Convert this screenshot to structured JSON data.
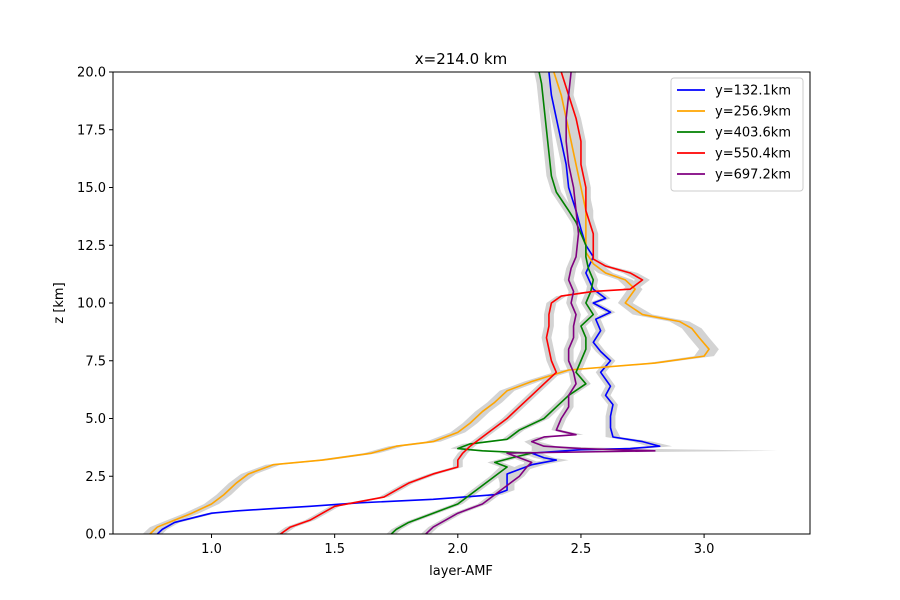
{
  "chart_data": {
    "type": "line",
    "title": "x=214.0 km",
    "xlabel": "layer-AMF",
    "ylabel": "z [km]",
    "xlim": [
      0.6,
      3.43
    ],
    "ylim": [
      0,
      20
    ],
    "xticks": [
      1.0,
      1.5,
      2.0,
      2.5,
      3.0
    ],
    "xtick_labels": [
      "1.0",
      "1.5",
      "2.0",
      "2.5",
      "3.0"
    ],
    "yticks": [
      0,
      2.5,
      5,
      7.5,
      10,
      12.5,
      15,
      17.5,
      20
    ],
    "ytick_labels": [
      "0.0",
      "2.5",
      "5.0",
      "7.5",
      "10.0",
      "12.5",
      "15.0",
      "17.5",
      "20.0"
    ],
    "grid": false,
    "legend_position": "top-right",
    "uncertainty_band_color": "#d3d3d3",
    "series": [
      {
        "name": "y=132.1km",
        "color": "#0000ff",
        "points": [
          [
            0.78,
            0
          ],
          [
            0.8,
            0.2
          ],
          [
            0.85,
            0.5
          ],
          [
            1.0,
            0.9
          ],
          [
            1.1,
            1.0
          ],
          [
            1.25,
            1.1
          ],
          [
            1.4,
            1.2
          ],
          [
            1.6,
            1.35
          ],
          [
            1.9,
            1.5
          ],
          [
            2.15,
            1.7
          ],
          [
            2.2,
            1.9
          ],
          [
            2.2,
            2.2
          ],
          [
            2.2,
            2.6
          ],
          [
            2.25,
            2.8
          ],
          [
            2.3,
            3.0
          ],
          [
            2.4,
            3.2
          ],
          [
            2.35,
            3.3
          ],
          [
            2.3,
            3.5
          ],
          [
            2.5,
            3.65
          ],
          [
            2.7,
            3.7
          ],
          [
            2.82,
            3.8
          ],
          [
            2.75,
            4.0
          ],
          [
            2.63,
            4.2
          ],
          [
            2.62,
            4.6
          ],
          [
            2.62,
            5.1
          ],
          [
            2.63,
            5.6
          ],
          [
            2.6,
            6.0
          ],
          [
            2.62,
            6.4
          ],
          [
            2.58,
            7.0
          ],
          [
            2.62,
            7.5
          ],
          [
            2.58,
            7.9
          ],
          [
            2.55,
            8.3
          ],
          [
            2.58,
            8.8
          ],
          [
            2.56,
            9.3
          ],
          [
            2.62,
            9.6
          ],
          [
            2.55,
            10.0
          ],
          [
            2.6,
            10.2
          ],
          [
            2.55,
            10.6
          ],
          [
            2.52,
            11.3
          ],
          [
            2.55,
            12.0
          ],
          [
            2.52,
            12.5
          ],
          [
            2.5,
            13.2
          ],
          [
            2.48,
            14.0
          ],
          [
            2.45,
            15.0
          ],
          [
            2.44,
            16.0
          ],
          [
            2.42,
            17.0
          ],
          [
            2.4,
            18.0
          ],
          [
            2.38,
            19.0
          ],
          [
            2.37,
            20.0
          ]
        ],
        "band": [
          0.02,
          0.02,
          0.02,
          0.02,
          0.02,
          0.02,
          0.02,
          0.02,
          0.02,
          0.03,
          0.03,
          0.03,
          0.04,
          0.04,
          0.05,
          0.05,
          0.04,
          0.04,
          0.05,
          0.06,
          0.05,
          0.04,
          0.03,
          0.02,
          0.02,
          0.02,
          0.02,
          0.02,
          0.02,
          0.02,
          0.02,
          0.02,
          0.02,
          0.02,
          0.02,
          0.02,
          0.02,
          0.02,
          0.02,
          0.02,
          0.02,
          0.02,
          0.02,
          0.02,
          0.02,
          0.02,
          0.02,
          0.02,
          0.02
        ]
      },
      {
        "name": "y=256.9km",
        "color": "#ffa500",
        "points": [
          [
            0.75,
            0
          ],
          [
            0.78,
            0.3
          ],
          [
            0.85,
            0.6
          ],
          [
            0.92,
            0.9
          ],
          [
            1.0,
            1.3
          ],
          [
            1.05,
            1.7
          ],
          [
            1.1,
            2.2
          ],
          [
            1.15,
            2.6
          ],
          [
            1.25,
            3.0
          ],
          [
            1.45,
            3.2
          ],
          [
            1.65,
            3.5
          ],
          [
            1.75,
            3.8
          ],
          [
            1.9,
            4.0
          ],
          [
            2.0,
            4.4
          ],
          [
            2.05,
            4.8
          ],
          [
            2.1,
            5.3
          ],
          [
            2.15,
            5.7
          ],
          [
            2.2,
            6.2
          ],
          [
            2.3,
            6.6
          ],
          [
            2.45,
            7.1
          ],
          [
            2.8,
            7.4
          ],
          [
            3.0,
            7.7
          ],
          [
            3.02,
            8.0
          ],
          [
            2.98,
            8.5
          ],
          [
            2.95,
            8.9
          ],
          [
            2.9,
            9.2
          ],
          [
            2.75,
            9.5
          ],
          [
            2.68,
            10.0
          ],
          [
            2.7,
            10.3
          ],
          [
            2.72,
            10.6
          ],
          [
            2.68,
            11.0
          ],
          [
            2.6,
            11.3
          ],
          [
            2.55,
            11.7
          ],
          [
            2.52,
            12.2
          ],
          [
            2.52,
            13.0
          ],
          [
            2.52,
            14.0
          ],
          [
            2.5,
            15.0
          ],
          [
            2.48,
            16.0
          ],
          [
            2.46,
            17.0
          ],
          [
            2.44,
            18.0
          ],
          [
            2.42,
            19.0
          ],
          [
            2.39,
            20.0
          ]
        ],
        "band": [
          0.03,
          0.03,
          0.03,
          0.03,
          0.03,
          0.03,
          0.03,
          0.03,
          0.03,
          0.03,
          0.03,
          0.03,
          0.03,
          0.03,
          0.03,
          0.03,
          0.03,
          0.03,
          0.03,
          0.03,
          0.03,
          0.04,
          0.04,
          0.04,
          0.04,
          0.04,
          0.04,
          0.03,
          0.03,
          0.03,
          0.03,
          0.03,
          0.03,
          0.03,
          0.03,
          0.03,
          0.03,
          0.03,
          0.03,
          0.03,
          0.03,
          0.03
        ]
      },
      {
        "name": "y=403.6km",
        "color": "#008000",
        "points": [
          [
            1.73,
            0
          ],
          [
            1.75,
            0.2
          ],
          [
            1.8,
            0.5
          ],
          [
            1.9,
            0.9
          ],
          [
            2.0,
            1.3
          ],
          [
            2.05,
            1.7
          ],
          [
            2.1,
            2.1
          ],
          [
            2.15,
            2.5
          ],
          [
            2.2,
            2.9
          ],
          [
            2.15,
            3.1
          ],
          [
            2.22,
            3.3
          ],
          [
            2.3,
            3.5
          ],
          [
            2.1,
            3.6
          ],
          [
            2.0,
            3.7
          ],
          [
            2.05,
            3.9
          ],
          [
            2.2,
            4.1
          ],
          [
            2.25,
            4.5
          ],
          [
            2.35,
            5.0
          ],
          [
            2.4,
            5.5
          ],
          [
            2.45,
            6.0
          ],
          [
            2.52,
            6.5
          ],
          [
            2.48,
            7.0
          ],
          [
            2.5,
            7.5
          ],
          [
            2.52,
            8.0
          ],
          [
            2.52,
            8.5
          ],
          [
            2.5,
            9.0
          ],
          [
            2.55,
            9.5
          ],
          [
            2.52,
            10.0
          ],
          [
            2.54,
            10.5
          ],
          [
            2.55,
            11.0
          ],
          [
            2.53,
            11.5
          ],
          [
            2.52,
            12.0
          ],
          [
            2.52,
            12.5
          ],
          [
            2.5,
            13.0
          ],
          [
            2.48,
            13.5
          ],
          [
            2.45,
            14.0
          ],
          [
            2.4,
            14.8
          ],
          [
            2.38,
            15.5
          ],
          [
            2.37,
            16.5
          ],
          [
            2.36,
            17.5
          ],
          [
            2.35,
            18.5
          ],
          [
            2.34,
            19.5
          ],
          [
            2.33,
            20.0
          ]
        ],
        "band": [
          0.02,
          0.02,
          0.02,
          0.02,
          0.02,
          0.02,
          0.02,
          0.02,
          0.03,
          0.03,
          0.03,
          0.04,
          0.04,
          0.03,
          0.03,
          0.02,
          0.02,
          0.02,
          0.02,
          0.02,
          0.02,
          0.02,
          0.02,
          0.02,
          0.02,
          0.02,
          0.02,
          0.02,
          0.02,
          0.02,
          0.02,
          0.02,
          0.02,
          0.02,
          0.02,
          0.02,
          0.02,
          0.02,
          0.02,
          0.02,
          0.02,
          0.02,
          0.02
        ]
      },
      {
        "name": "y=550.4km",
        "color": "#ff0000",
        "points": [
          [
            1.28,
            0
          ],
          [
            1.32,
            0.3
          ],
          [
            1.4,
            0.6
          ],
          [
            1.45,
            0.9
          ],
          [
            1.5,
            1.2
          ],
          [
            1.6,
            1.4
          ],
          [
            1.7,
            1.6
          ],
          [
            1.75,
            1.9
          ],
          [
            1.8,
            2.2
          ],
          [
            1.9,
            2.6
          ],
          [
            2.0,
            2.9
          ],
          [
            2.0,
            3.2
          ],
          [
            2.02,
            3.5
          ],
          [
            2.05,
            3.8
          ],
          [
            2.1,
            4.2
          ],
          [
            2.15,
            4.6
          ],
          [
            2.2,
            5.0
          ],
          [
            2.25,
            5.5
          ],
          [
            2.3,
            6.0
          ],
          [
            2.35,
            6.5
          ],
          [
            2.4,
            7.0
          ],
          [
            2.38,
            7.5
          ],
          [
            2.37,
            8.0
          ],
          [
            2.36,
            8.5
          ],
          [
            2.37,
            9.0
          ],
          [
            2.37,
            9.5
          ],
          [
            2.38,
            10.0
          ],
          [
            2.42,
            10.3
          ],
          [
            2.55,
            10.5
          ],
          [
            2.7,
            10.6
          ],
          [
            2.75,
            11.0
          ],
          [
            2.7,
            11.3
          ],
          [
            2.6,
            11.6
          ],
          [
            2.55,
            11.9
          ],
          [
            2.55,
            12.5
          ],
          [
            2.55,
            13.0
          ],
          [
            2.52,
            14.0
          ],
          [
            2.52,
            15.0
          ],
          [
            2.5,
            16.0
          ],
          [
            2.5,
            17.0
          ],
          [
            2.48,
            18.0
          ],
          [
            2.45,
            19.0
          ],
          [
            2.42,
            20.0
          ]
        ],
        "band": [
          0.02,
          0.02,
          0.02,
          0.02,
          0.02,
          0.02,
          0.02,
          0.02,
          0.02,
          0.02,
          0.02,
          0.02,
          0.02,
          0.02,
          0.02,
          0.02,
          0.02,
          0.02,
          0.02,
          0.02,
          0.02,
          0.02,
          0.02,
          0.02,
          0.02,
          0.02,
          0.02,
          0.02,
          0.03,
          0.03,
          0.03,
          0.03,
          0.02,
          0.02,
          0.02,
          0.02,
          0.02,
          0.02,
          0.02,
          0.02,
          0.02,
          0.02,
          0.02
        ]
      },
      {
        "name": "y=697.2km",
        "color": "#800080",
        "points": [
          [
            1.87,
            0
          ],
          [
            1.9,
            0.3
          ],
          [
            1.95,
            0.6
          ],
          [
            2.0,
            0.9
          ],
          [
            2.1,
            1.3
          ],
          [
            2.15,
            1.7
          ],
          [
            2.2,
            2.1
          ],
          [
            2.25,
            2.5
          ],
          [
            2.28,
            2.9
          ],
          [
            2.3,
            3.1
          ],
          [
            2.25,
            3.3
          ],
          [
            2.2,
            3.5
          ],
          [
            2.8,
            3.6
          ],
          [
            2.5,
            3.7
          ],
          [
            2.35,
            3.8
          ],
          [
            2.3,
            4.0
          ],
          [
            2.35,
            4.2
          ],
          [
            2.48,
            4.3
          ],
          [
            2.4,
            4.5
          ],
          [
            2.42,
            5.0
          ],
          [
            2.45,
            5.5
          ],
          [
            2.45,
            6.0
          ],
          [
            2.48,
            6.5
          ],
          [
            2.47,
            7.0
          ],
          [
            2.45,
            7.5
          ],
          [
            2.45,
            8.0
          ],
          [
            2.47,
            8.5
          ],
          [
            2.47,
            9.0
          ],
          [
            2.48,
            9.5
          ],
          [
            2.46,
            10.0
          ],
          [
            2.47,
            10.5
          ],
          [
            2.45,
            11.0
          ],
          [
            2.46,
            11.5
          ],
          [
            2.48,
            12.0
          ],
          [
            2.49,
            13.0
          ],
          [
            2.48,
            14.0
          ],
          [
            2.47,
            15.0
          ],
          [
            2.45,
            16.0
          ],
          [
            2.44,
            17.0
          ],
          [
            2.44,
            18.0
          ],
          [
            2.45,
            19.0
          ],
          [
            2.46,
            20.0
          ]
        ],
        "band": [
          0.02,
          0.02,
          0.02,
          0.02,
          0.02,
          0.02,
          0.02,
          0.02,
          0.02,
          0.03,
          0.03,
          0.03,
          0.5,
          0.2,
          0.05,
          0.03,
          0.03,
          0.03,
          0.02,
          0.02,
          0.02,
          0.02,
          0.02,
          0.02,
          0.02,
          0.02,
          0.02,
          0.02,
          0.02,
          0.02,
          0.02,
          0.02,
          0.02,
          0.02,
          0.02,
          0.02,
          0.02,
          0.02,
          0.02,
          0.02,
          0.02,
          0.02
        ]
      }
    ]
  }
}
